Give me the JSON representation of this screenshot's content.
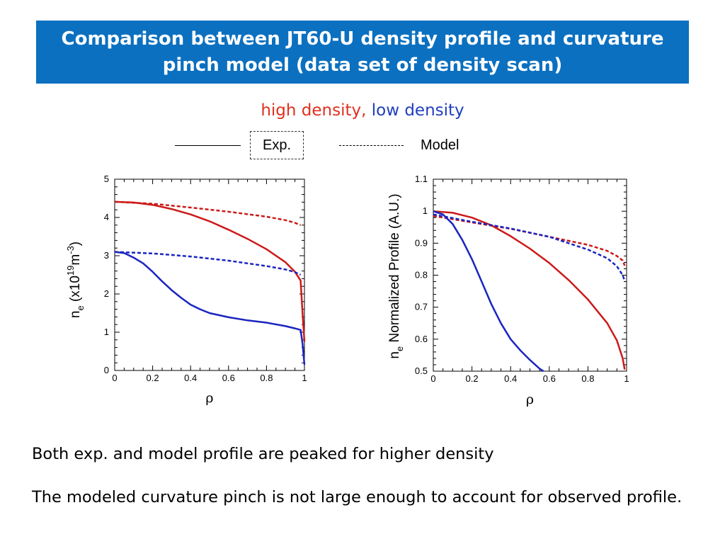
{
  "slide": {
    "title": "Comparison between JT60-U density profile and curvature pinch model (data set of density scan)",
    "subtitle_high": "high density,",
    "subtitle_low": "low density",
    "legend_exp": "Exp.",
    "legend_model": "Model",
    "body1": "Both exp. and model profile are peaked for higher density",
    "body2": "The modeled curvature pinch is not large enough to account for observed profile."
  },
  "colors": {
    "title_bg": "#0b70c0",
    "high_density": "#cc1a1a",
    "low_density": "#1a25c0"
  },
  "chart_data": [
    {
      "type": "line",
      "xlabel": "ρ",
      "ylabel_parts": [
        "n",
        "e",
        " (x10",
        "19",
        "m",
        "-3",
        ")"
      ],
      "xlim": [
        0,
        1
      ],
      "ylim": [
        0,
        5
      ],
      "xticks": [
        0,
        0.2,
        0.4,
        0.6,
        0.8,
        1
      ],
      "xtick_labels": [
        "0",
        "0.2",
        "0.4",
        "0.6",
        "0.8",
        "1"
      ],
      "yticks": [
        0,
        1,
        2,
        3,
        4,
        5
      ],
      "ytick_labels": [
        "0",
        "1",
        "2",
        "3",
        "4",
        "5"
      ],
      "series": [
        {
          "density": "high",
          "kind": "Exp.",
          "style": "solid",
          "color": "#cc1a1a",
          "x": [
            0,
            0.1,
            0.2,
            0.3,
            0.4,
            0.5,
            0.6,
            0.7,
            0.8,
            0.9,
            0.95,
            0.98,
            0.99,
            1.0
          ],
          "y": [
            4.41,
            4.39,
            4.33,
            4.22,
            4.08,
            3.9,
            3.68,
            3.44,
            3.17,
            2.83,
            2.58,
            2.35,
            1.5,
            0.75
          ]
        },
        {
          "density": "high",
          "kind": "Model",
          "style": "dashed",
          "color": "#cc1a1a",
          "x": [
            0,
            0.2,
            0.4,
            0.6,
            0.8,
            0.9,
            0.95,
            0.98
          ],
          "y": [
            4.41,
            4.36,
            4.26,
            4.15,
            4.02,
            3.93,
            3.86,
            3.8
          ]
        },
        {
          "density": "low",
          "kind": "Exp.",
          "style": "solid",
          "color": "#1a25c0",
          "x": [
            0,
            0.05,
            0.1,
            0.15,
            0.2,
            0.25,
            0.3,
            0.35,
            0.4,
            0.45,
            0.5,
            0.6,
            0.7,
            0.8,
            0.9,
            0.95,
            0.98,
            0.99,
            1.0
          ],
          "y": [
            3.1,
            3.07,
            2.95,
            2.8,
            2.58,
            2.33,
            2.1,
            1.9,
            1.72,
            1.6,
            1.5,
            1.39,
            1.31,
            1.25,
            1.16,
            1.1,
            1.06,
            0.7,
            0.15
          ]
        },
        {
          "density": "low",
          "kind": "Model",
          "style": "dashed",
          "color": "#1a25c0",
          "x": [
            0,
            0.2,
            0.4,
            0.6,
            0.8,
            0.9,
            0.95,
            0.98
          ],
          "y": [
            3.1,
            3.06,
            2.98,
            2.87,
            2.73,
            2.64,
            2.57,
            2.5
          ]
        }
      ]
    },
    {
      "type": "line",
      "xlabel": "ρ",
      "ylabel_parts": [
        "n",
        "e",
        " Normalized Profile (A.U.)"
      ],
      "xlim": [
        0,
        1
      ],
      "ylim": [
        0.5,
        1.1
      ],
      "xticks": [
        0,
        0.2,
        0.4,
        0.6,
        0.8,
        1
      ],
      "xtick_labels": [
        "0",
        "0.2",
        "0.4",
        "0.6",
        "0.8",
        "1"
      ],
      "yticks": [
        0.5,
        0.6,
        0.7,
        0.8,
        0.9,
        1,
        1.1
      ],
      "ytick_labels": [
        "0.5",
        "0.6",
        "0.7",
        "0.8",
        "0.9",
        "1",
        "1.1"
      ],
      "series": [
        {
          "density": "high",
          "kind": "Exp.",
          "style": "solid",
          "color": "#cc1a1a",
          "x": [
            0,
            0.1,
            0.2,
            0.3,
            0.4,
            0.5,
            0.6,
            0.7,
            0.8,
            0.9,
            0.95,
            0.98,
            0.99
          ],
          "y": [
            1.0,
            0.995,
            0.98,
            0.956,
            0.922,
            0.883,
            0.838,
            0.785,
            0.724,
            0.65,
            0.596,
            0.54,
            0.505
          ]
        },
        {
          "density": "high",
          "kind": "Model",
          "style": "dashed",
          "color": "#cc1a1a",
          "x": [
            0,
            0.2,
            0.4,
            0.6,
            0.8,
            0.9,
            0.95,
            0.98,
            0.99
          ],
          "y": [
            0.985,
            0.965,
            0.945,
            0.92,
            0.895,
            0.876,
            0.86,
            0.846,
            0.83
          ]
        },
        {
          "density": "low",
          "kind": "Exp.",
          "style": "solid",
          "color": "#1a25c0",
          "x": [
            0,
            0.05,
            0.1,
            0.15,
            0.2,
            0.25,
            0.3,
            0.35,
            0.4,
            0.45,
            0.5,
            0.55,
            0.57
          ],
          "y": [
            1.0,
            0.99,
            0.96,
            0.91,
            0.85,
            0.78,
            0.71,
            0.65,
            0.6,
            0.565,
            0.535,
            0.508,
            0.5
          ]
        },
        {
          "density": "low",
          "kind": "Model",
          "style": "dashed",
          "color": "#1a25c0",
          "x": [
            0,
            0.2,
            0.4,
            0.6,
            0.8,
            0.9,
            0.95,
            0.98,
            0.99
          ],
          "y": [
            0.99,
            0.967,
            0.946,
            0.92,
            0.88,
            0.853,
            0.828,
            0.8,
            0.782
          ]
        }
      ]
    }
  ]
}
